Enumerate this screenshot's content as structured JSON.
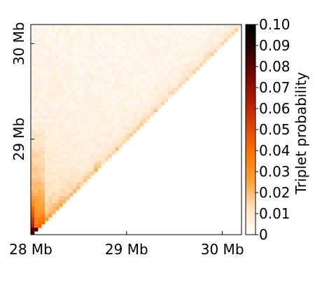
{
  "chart_data": {
    "type": "heatmap",
    "title": "",
    "xlabel": "",
    "ylabel": "",
    "x_range_mb": [
      28.0,
      30.2
    ],
    "y_range_mb": [
      28.0,
      30.2
    ],
    "x_ticks": [
      {
        "value": 28,
        "label": "28 Mb"
      },
      {
        "value": 29,
        "label": "29 Mb"
      },
      {
        "value": 30,
        "label": "30 Mb"
      }
    ],
    "y_ticks": [
      {
        "value": 29,
        "label": "29 Mb"
      },
      {
        "value": 30,
        "label": "30 Mb"
      }
    ],
    "matrix": "lower-triangular",
    "value_range": [
      0,
      0.1
    ],
    "typical_value": 0.005,
    "peak_value": 0.1,
    "colorbar": {
      "label": "Triplet probability",
      "ticks": [
        {
          "value": 0.0,
          "label": "0"
        },
        {
          "value": 0.01,
          "label": "0.01"
        },
        {
          "value": 0.02,
          "label": "0.02"
        },
        {
          "value": 0.03,
          "label": "0.03"
        },
        {
          "value": 0.04,
          "label": "0.04"
        },
        {
          "value": 0.05,
          "label": "0.05"
        },
        {
          "value": 0.06,
          "label": "0.06"
        },
        {
          "value": 0.07,
          "label": "0.07"
        },
        {
          "value": 0.08,
          "label": "0.08"
        },
        {
          "value": 0.09,
          "label": "0.09"
        },
        {
          "value": 0.1,
          "label": "0.10"
        }
      ],
      "colormap": "white-orange-red-black",
      "colors": [
        "#ffffff",
        "#ffe3c2",
        "#ffa33d",
        "#ff7a00",
        "#e04a00",
        "#b81e00",
        "#780800",
        "#300000",
        "#000000"
      ]
    },
    "grid": false,
    "legend": "right"
  }
}
